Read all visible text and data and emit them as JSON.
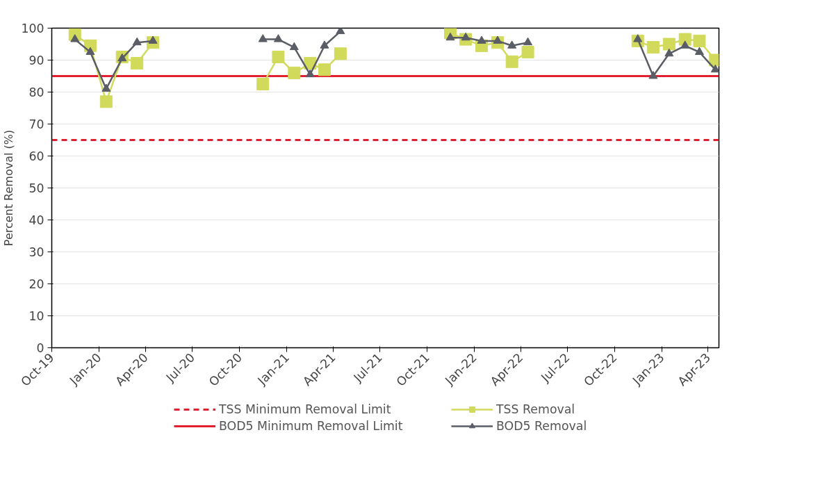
{
  "chart_data": {
    "type": "line",
    "ylabel": "Percent Removal (%)",
    "xlim": [
      "2019-10-01",
      "2023-04-22"
    ],
    "xticks": [
      {
        "value": "2019-10-01",
        "label": "Oct-19"
      },
      {
        "value": "2020-01-01",
        "label": "Jan-20"
      },
      {
        "value": "2020-04-01",
        "label": "Apr-20"
      },
      {
        "value": "2020-07-01",
        "label": "Jul-20"
      },
      {
        "value": "2020-10-01",
        "label": "Oct-20"
      },
      {
        "value": "2021-01-01",
        "label": "Jan-21"
      },
      {
        "value": "2021-04-01",
        "label": "Apr-21"
      },
      {
        "value": "2021-07-01",
        "label": "Jul-21"
      },
      {
        "value": "2021-10-01",
        "label": "Oct-21"
      },
      {
        "value": "2022-01-01",
        "label": "Jan-22"
      },
      {
        "value": "2022-04-01",
        "label": "Apr-22"
      },
      {
        "value": "2022-07-01",
        "label": "Jul-22"
      },
      {
        "value": "2022-10-01",
        "label": "Oct-22"
      },
      {
        "value": "2023-01-01",
        "label": "Jan-23"
      },
      {
        "value": "2023-04-01",
        "label": "Apr-23"
      }
    ],
    "ylim": [
      0,
      100
    ],
    "yticks": [
      0,
      10,
      20,
      30,
      40,
      50,
      60,
      70,
      80,
      90,
      100
    ],
    "grid": "y",
    "legend": "bottom",
    "x": [
      "2019-11-15",
      "2019-12-15",
      "2020-01-15",
      "2020-02-15",
      "2020-03-15",
      "2020-04-15",
      "2020-07-15",
      "2020-11-15",
      "2020-12-15",
      "2021-01-15",
      "2021-02-15",
      "2021-03-15",
      "2021-04-15",
      "2021-07-15",
      "2021-11-15",
      "2021-12-15",
      "2022-01-15",
      "2022-02-15",
      "2022-03-15",
      "2022-04-15",
      "2022-07-15",
      "2022-11-15",
      "2022-12-15",
      "2023-01-15",
      "2023-02-15",
      "2023-03-15",
      "2023-04-15"
    ],
    "series": [
      {
        "name": "TSS Removal",
        "color": "#d2da5c",
        "marker": "square",
        "values": [
          98,
          94.5,
          77,
          91,
          89,
          95.5,
          null,
          82.5,
          91,
          86,
          89,
          87,
          92,
          null,
          98.5,
          96.5,
          94.5,
          95.5,
          89.5,
          92.5,
          null,
          96,
          94,
          95,
          96.5,
          96,
          90
        ]
      },
      {
        "name": "BOD5 Removal",
        "color": "#5a5c66",
        "marker": "triangle",
        "values": [
          96.5,
          92.5,
          81,
          90.5,
          95.5,
          96,
          null,
          96.5,
          96.5,
          94,
          85.5,
          94.5,
          99,
          null,
          97,
          97,
          96,
          96,
          94.5,
          95.5,
          null,
          96.5,
          85,
          92,
          94.5,
          92.5,
          87
        ]
      }
    ],
    "ref_lines": [
      {
        "axis": "y",
        "value": 65,
        "label": "TSS Minimum Removal Limit",
        "color": "#e02030",
        "line_style": "dashed"
      },
      {
        "axis": "y",
        "value": 85,
        "label": "BOD5 Minimum Removal Limit",
        "color": "#e02030",
        "line_style": "solid"
      }
    ]
  }
}
